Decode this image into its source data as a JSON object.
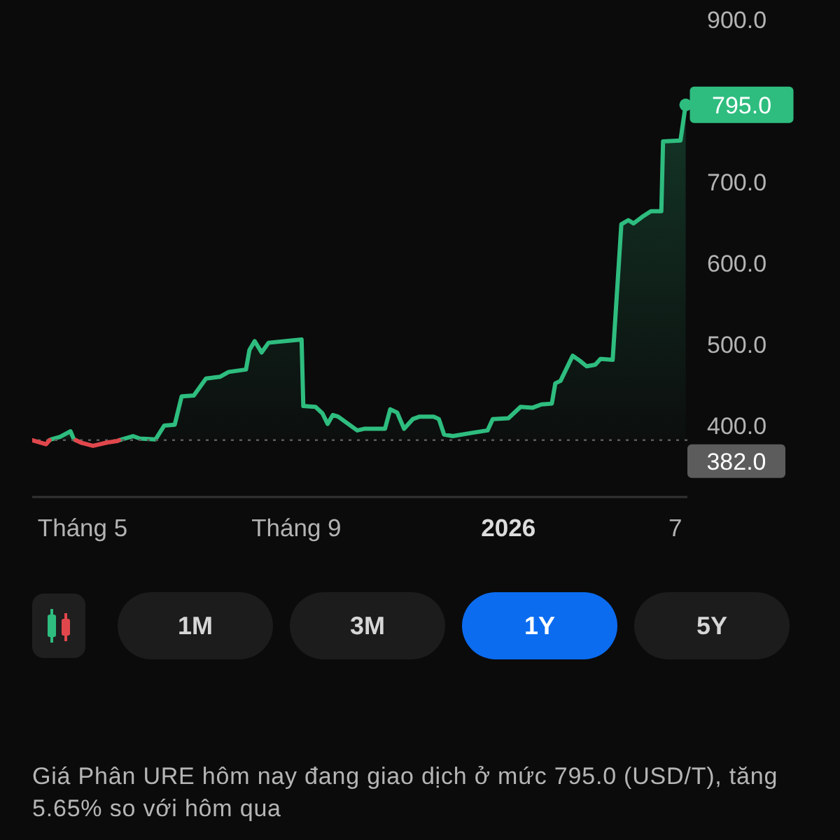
{
  "chart_data": {
    "type": "area",
    "series": [
      {
        "type": "line",
        "color": "#e0474c",
        "x": [
          "2025-04-02",
          "2025-04-10",
          "2025-04-12"
        ],
        "values": [
          382,
          377,
          382
        ]
      },
      {
        "color": "#2ebd7f",
        "x": [
          "2025-04-12",
          "2025-04-13",
          "2025-04-18",
          "2025-04-24",
          "2025-04-26",
          "2025-04-27"
        ],
        "values": [
          382,
          383,
          386,
          393,
          383,
          382
        ]
      },
      {
        "type": "line",
        "color": "#e0474c",
        "x": [
          "2025-04-27",
          "2025-04-30",
          "2025-05-07",
          "2025-05-15",
          "2025-05-21",
          "2025-05-22"
        ],
        "values": [
          382,
          379,
          375,
          379,
          381,
          382
        ]
      },
      {
        "color": "#2ebd7f",
        "x": [
          "2025-05-22",
          "2025-05-30",
          "2025-06-03",
          "2025-06-12",
          "2025-06-17",
          "2025-06-23",
          "2025-06-27",
          "2025-07-04",
          "2025-07-11",
          "2025-07-19",
          "2025-07-24",
          "2025-08-03",
          "2025-08-05",
          "2025-08-08",
          "2025-08-12",
          "2025-08-16",
          "2025-09-04",
          "2025-09-05",
          "2025-09-12",
          "2025-09-16",
          "2025-09-19",
          "2025-09-22",
          "2025-09-25",
          "2025-10-06",
          "2025-10-10",
          "2025-10-22",
          "2025-10-25",
          "2025-10-29",
          "2025-11-02",
          "2025-11-07",
          "2025-11-11",
          "2025-11-19",
          "2025-11-22",
          "2025-11-25",
          "2025-11-30",
          "2025-12-11",
          "2025-12-20",
          "2025-12-23",
          "2026-01-01",
          "2026-01-08",
          "2026-01-15",
          "2026-01-20",
          "2026-01-26",
          "2026-01-28",
          "2026-01-31",
          "2026-02-07",
          "2026-02-11",
          "2026-02-15",
          "2026-02-20",
          "2026-02-23",
          "2026-03-02",
          "2026-03-07",
          "2026-03-11",
          "2026-03-14",
          "2026-03-19",
          "2026-03-24",
          "2026-03-30",
          "2026-03-31",
          "2026-04-10",
          "2026-04-13"
        ],
        "values": [
          382,
          387,
          384,
          383,
          400,
          401,
          436,
          437,
          458,
          460,
          466,
          469,
          493,
          504,
          490,
          502,
          506,
          424,
          423,
          415,
          402,
          413,
          411,
          394,
          396,
          396,
          420,
          416,
          396,
          408,
          411,
          411,
          408,
          389,
          387,
          391,
          394,
          408,
          409,
          423,
          422,
          426,
          427,
          452,
          455,
          486,
          480,
          473,
          475,
          482,
          481,
          648,
          653,
          649,
          657,
          664,
          664,
          750,
          751,
          795
        ],
        "value_labels": [
          null,
          null,
          null,
          null,
          null,
          null,
          null,
          null,
          null,
          null,
          null,
          null,
          null,
          null,
          null,
          null,
          null,
          null,
          null,
          null,
          null,
          null,
          null,
          null,
          null,
          null,
          null,
          null,
          null,
          null,
          null,
          null,
          null,
          null,
          null,
          null,
          null,
          null,
          null,
          null,
          null,
          null,
          null,
          null,
          null,
          null,
          null,
          null,
          null,
          null,
          null,
          null,
          null,
          null,
          null,
          null,
          null,
          null,
          null,
          "795.0"
        ]
      }
    ],
    "xlim": [
      "2025-04-02",
      "2026-04-14"
    ],
    "xticks": [
      {
        "value": "2025-05-01",
        "label": "Tháng 5"
      },
      {
        "value": "2025-09-01",
        "label": "Tháng 9"
      },
      {
        "value": "2026-01-01",
        "label": "2026"
      },
      {
        "value": "2026-04-07",
        "label": "7"
      }
    ],
    "ylim": [
      312,
      900
    ],
    "yticks": [
      {
        "value": 400,
        "label": "400.0"
      },
      {
        "value": 500,
        "label": "500.0"
      },
      {
        "value": 600,
        "label": "600.0"
      },
      {
        "value": 700,
        "label": "700.0"
      },
      {
        "value": 900,
        "label": "900.0"
      }
    ],
    "ref_lines": [
      {
        "axis": "y",
        "value": 382,
        "label": "382.0",
        "color": "#5c5c5c",
        "line_style": "dotted"
      }
    ],
    "annotations": [
      "1M",
      "3M",
      "1Y",
      "5Y",
      "Giá Phân URE hôm nay đang giao dịch ở mức 795.0 (USD/T), tăng 5.65% so với hôm qua"
    ]
  }
}
